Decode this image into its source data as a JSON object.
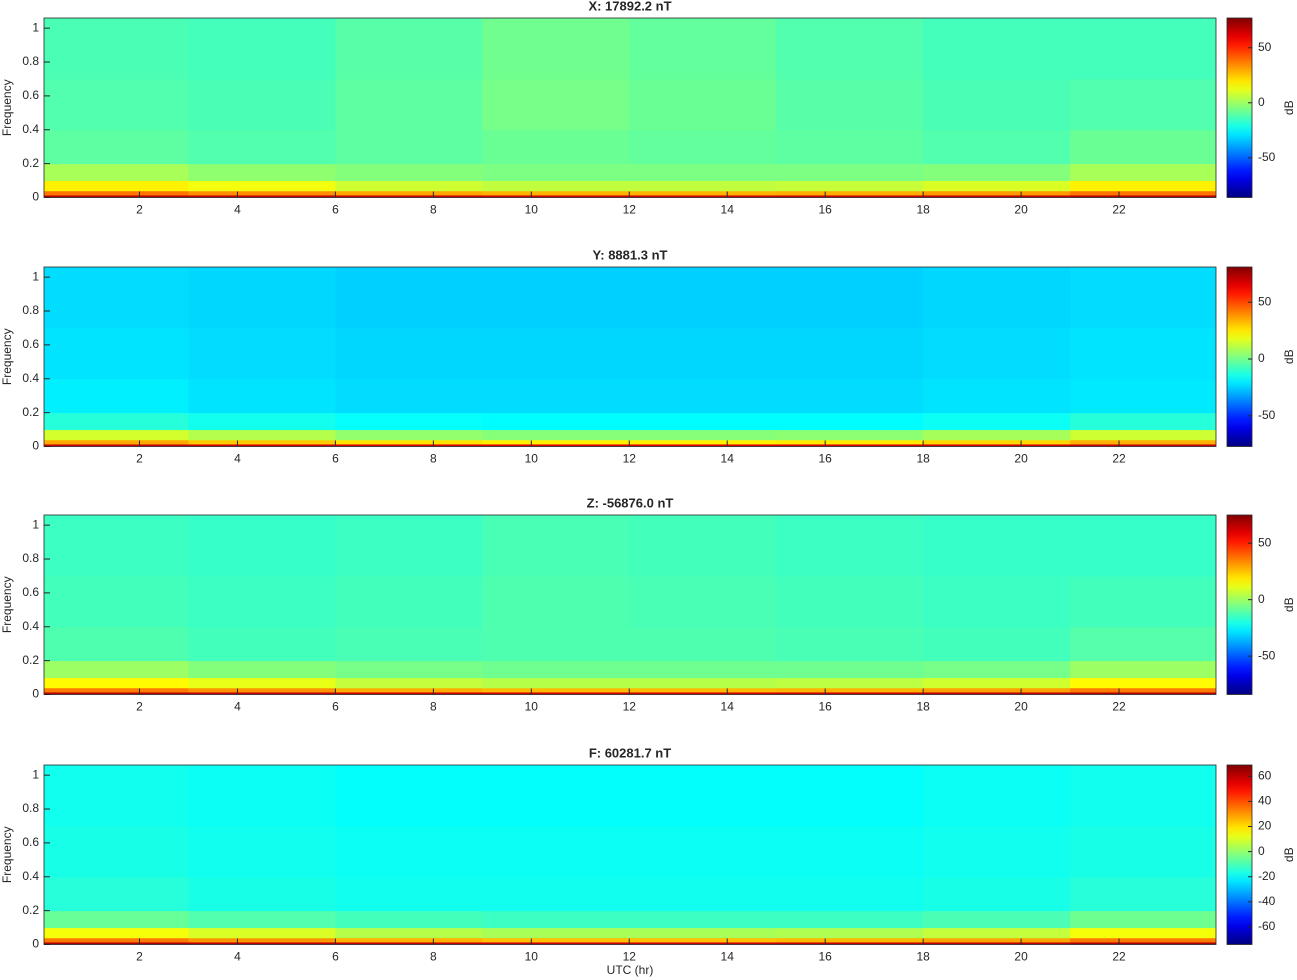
{
  "chart_data": [
    {
      "type": "heatmap",
      "title": "X: 17892.2 nT",
      "ylabel": "Frequency",
      "colorbar_label": "dB",
      "colormap": "jet",
      "x": [
        0,
        3,
        6,
        9,
        12,
        15,
        18,
        21,
        24
      ],
      "y": [
        0,
        0.015,
        0.04,
        0.1,
        0.2,
        0.4,
        0.7,
        1.06
      ],
      "z": [
        [
          68,
          66,
          65,
          64,
          64,
          65,
          66,
          68
        ],
        [
          38,
          34,
          30,
          28,
          28,
          29,
          32,
          38
        ],
        [
          18,
          14,
          8,
          6,
          6,
          7,
          10,
          18
        ],
        [
          2,
          -2,
          -4,
          -5,
          -5,
          -5,
          -4,
          2
        ],
        [
          -10,
          -12,
          -10,
          -8,
          -9,
          -10,
          -12,
          -8
        ],
        [
          -12,
          -13,
          -10,
          -6,
          -8,
          -11,
          -13,
          -12
        ],
        [
          -13,
          -14,
          -11,
          -7,
          -9,
          -12,
          -14,
          -14
        ]
      ],
      "xlim": [
        0.05,
        23.98
      ],
      "ylim": [
        0,
        1.06
      ],
      "xticks": [
        2,
        4,
        6,
        8,
        10,
        12,
        14,
        16,
        18,
        20,
        22
      ],
      "yticks": [
        0,
        0.2,
        0.4,
        0.6,
        0.8,
        1
      ],
      "clim": [
        -86,
        77
      ],
      "cticks": [
        -50,
        0,
        50
      ]
    },
    {
      "type": "heatmap",
      "title": "Y: 8881.3 nT",
      "ylabel": "Frequency",
      "colorbar_label": "dB",
      "colormap": "jet",
      "x": [
        0,
        3,
        6,
        9,
        12,
        15,
        18,
        21,
        24
      ],
      "y": [
        0,
        0.015,
        0.04,
        0.1,
        0.2,
        0.4,
        0.7,
        1.06
      ],
      "z": [
        [
          70,
          68,
          67,
          66,
          66,
          67,
          68,
          70
        ],
        [
          35,
          30,
          26,
          24,
          24,
          25,
          28,
          34
        ],
        [
          15,
          10,
          5,
          3,
          3,
          4,
          8,
          14
        ],
        [
          -12,
          -15,
          -17,
          -18,
          -18,
          -18,
          -16,
          -12
        ],
        [
          -20,
          -22,
          -23,
          -23,
          -23,
          -23,
          -22,
          -21
        ],
        [
          -22,
          -23,
          -24,
          -24,
          -24,
          -24,
          -23,
          -22
        ],
        [
          -23,
          -24,
          -25,
          -25,
          -25,
          -25,
          -24,
          -23
        ]
      ],
      "xlim": [
        0.05,
        23.98
      ],
      "ylim": [
        0,
        1.06
      ],
      "xticks": [
        2,
        4,
        6,
        8,
        10,
        12,
        14,
        16,
        18,
        20,
        22
      ],
      "yticks": [
        0,
        0.2,
        0.4,
        0.6,
        0.8,
        1
      ],
      "clim": [
        -77,
        81
      ],
      "cticks": [
        -50,
        0,
        50
      ]
    },
    {
      "type": "heatmap",
      "title": "Z: -56876.0 nT",
      "ylabel": "Frequency",
      "colorbar_label": "dB",
      "colormap": "jet",
      "x": [
        0,
        3,
        6,
        9,
        12,
        15,
        18,
        21,
        24
      ],
      "y": [
        0,
        0.015,
        0.04,
        0.1,
        0.2,
        0.4,
        0.7,
        1.06
      ],
      "z": [
        [
          66,
          64,
          63,
          62,
          62,
          63,
          64,
          66
        ],
        [
          36,
          32,
          28,
          26,
          26,
          27,
          30,
          36
        ],
        [
          16,
          12,
          6,
          4,
          4,
          5,
          8,
          16
        ],
        [
          0,
          -4,
          -6,
          -7,
          -7,
          -7,
          -6,
          0
        ],
        [
          -12,
          -14,
          -13,
          -12,
          -12,
          -13,
          -14,
          -11
        ],
        [
          -14,
          -15,
          -14,
          -12,
          -13,
          -14,
          -15,
          -14
        ],
        [
          -15,
          -16,
          -15,
          -13,
          -14,
          -15,
          -16,
          -16
        ]
      ],
      "xlim": [
        0.05,
        23.98
      ],
      "ylim": [
        0,
        1.06
      ],
      "xticks": [
        2,
        4,
        6,
        8,
        10,
        12,
        14,
        16,
        18,
        20,
        22
      ],
      "yticks": [
        0,
        0.2,
        0.4,
        0.6,
        0.8,
        1
      ],
      "clim": [
        -84,
        75
      ],
      "cticks": [
        -50,
        0,
        50
      ]
    },
    {
      "type": "heatmap",
      "title": "F: 60281.7 nT",
      "ylabel": "Frequency",
      "colorbar_label": "dB",
      "colormap": "jet",
      "xlabel": "UTC (hr)",
      "x": [
        0,
        3,
        6,
        9,
        12,
        15,
        18,
        21,
        24
      ],
      "y": [
        0,
        0.015,
        0.04,
        0.1,
        0.2,
        0.4,
        0.7,
        1.06
      ],
      "z": [
        [
          62,
          60,
          59,
          58,
          58,
          59,
          60,
          62
        ],
        [
          34,
          30,
          26,
          24,
          24,
          25,
          28,
          34
        ],
        [
          14,
          10,
          5,
          3,
          3,
          4,
          7,
          14
        ],
        [
          -6,
          -9,
          -11,
          -12,
          -12,
          -12,
          -10,
          -5
        ],
        [
          -15,
          -17,
          -18,
          -18,
          -18,
          -18,
          -17,
          -15
        ],
        [
          -17,
          -18,
          -19,
          -19,
          -19,
          -19,
          -18,
          -17
        ],
        [
          -18,
          -19,
          -20,
          -20,
          -20,
          -20,
          -19,
          -18
        ]
      ],
      "xlim": [
        0.05,
        23.98
      ],
      "ylim": [
        0,
        1.06
      ],
      "xticks": [
        2,
        4,
        6,
        8,
        10,
        12,
        14,
        16,
        18,
        20,
        22
      ],
      "yticks": [
        0,
        0.2,
        0.4,
        0.6,
        0.8,
        1
      ],
      "clim": [
        -74,
        69
      ],
      "cticks": [
        -60,
        -40,
        -20,
        0,
        20,
        40,
        60
      ]
    }
  ]
}
